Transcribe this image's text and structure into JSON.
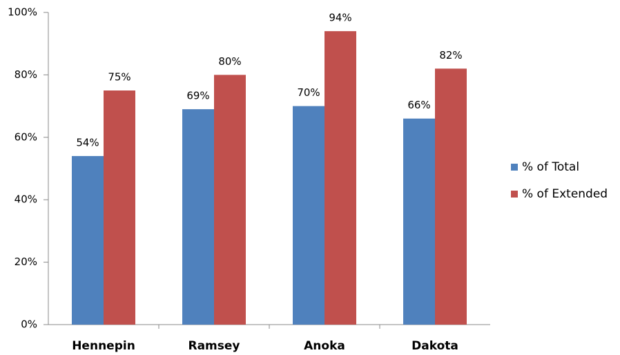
{
  "chart_data": {
    "type": "bar",
    "categories": [
      "Hennepin",
      "Ramsey",
      "Anoka",
      "Dakota"
    ],
    "series": [
      {
        "name": "% of Total",
        "color": "#4f81bd",
        "values": [
          54,
          69,
          70,
          66
        ],
        "value_labels": [
          "54%",
          "69%",
          "70%",
          "66%"
        ]
      },
      {
        "name": "% of Extended",
        "color": "#c0504d",
        "values": [
          75,
          80,
          94,
          82
        ],
        "value_labels": [
          "75%",
          "80%",
          "94%",
          "82%"
        ]
      }
    ],
    "ylim": [
      0,
      100
    ],
    "yticks": [
      {
        "value": 0,
        "label": "0%"
      },
      {
        "value": 20,
        "label": "20%"
      },
      {
        "value": 40,
        "label": "40%"
      },
      {
        "value": 60,
        "label": "60%"
      },
      {
        "value": 80,
        "label": "80%"
      },
      {
        "value": 100,
        "label": "100%"
      }
    ],
    "grid": false,
    "legend": "right"
  }
}
